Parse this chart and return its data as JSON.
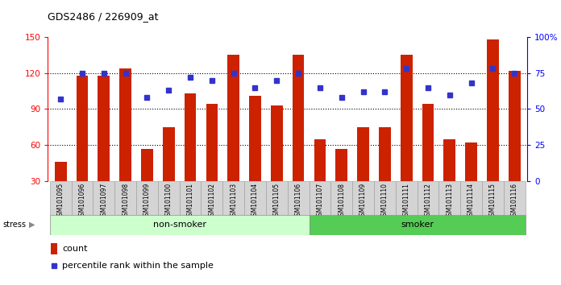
{
  "title": "GDS2486 / 226909_at",
  "samples": [
    "GSM101095",
    "GSM101096",
    "GSM101097",
    "GSM101098",
    "GSM101099",
    "GSM101100",
    "GSM101101",
    "GSM101102",
    "GSM101103",
    "GSM101104",
    "GSM101105",
    "GSM101106",
    "GSM101107",
    "GSM101108",
    "GSM101109",
    "GSM101110",
    "GSM101111",
    "GSM101112",
    "GSM101113",
    "GSM101114",
    "GSM101115",
    "GSM101116"
  ],
  "bar_heights": [
    46,
    118,
    118,
    124,
    57,
    75,
    103,
    94,
    135,
    101,
    93,
    135,
    65,
    57,
    75,
    75,
    135,
    94,
    65,
    62,
    148,
    122
  ],
  "dot_values_pct": [
    57,
    75,
    75,
    75,
    58,
    63,
    72,
    70,
    75,
    65,
    70,
    75,
    65,
    58,
    62,
    62,
    78,
    65,
    60,
    68,
    78,
    75
  ],
  "bar_color": "#cc2200",
  "dot_color": "#3333cc",
  "ylim_left": [
    30,
    150
  ],
  "ylim_right": [
    0,
    100
  ],
  "yticks_left": [
    30,
    60,
    90,
    120,
    150
  ],
  "ytick_labels_left": [
    "30",
    "60",
    "90",
    "120",
    "150"
  ],
  "yticks_right_pct": [
    0,
    25,
    50,
    75,
    100
  ],
  "ytick_labels_right": [
    "0",
    "25",
    "50",
    "75",
    "100%"
  ],
  "non_smoker_count": 12,
  "smoker_count": 10,
  "non_smoker_color": "#ccffcc",
  "smoker_color": "#55cc55",
  "group_label_nonsmoker": "non-smoker",
  "group_label_smoker": "smoker",
  "stress_label": "stress",
  "legend_count_label": "count",
  "legend_pct_label": "percentile rank within the sample",
  "bar_width": 0.55
}
